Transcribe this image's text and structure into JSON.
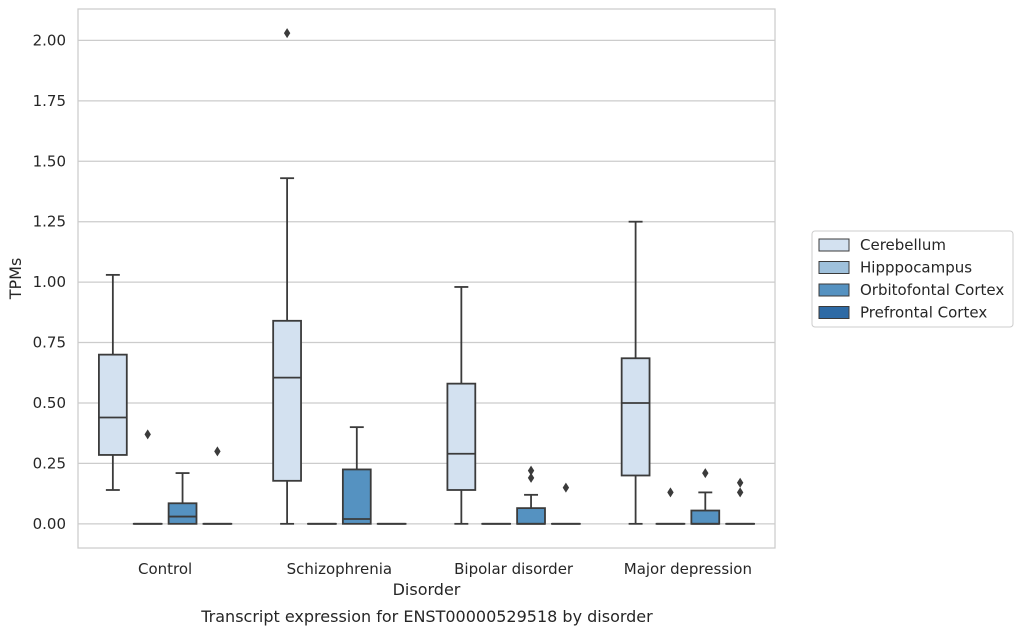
{
  "chart_data": {
    "type": "box",
    "xlabel": "Disorder",
    "ylabel": "TPMs",
    "caption": "Transcript expression for ENST00000529518 by disorder",
    "categories": [
      "Control",
      "Schizophrenia",
      "Bipolar disorder",
      "Major depression"
    ],
    "ylim": [
      -0.1,
      2.13
    ],
    "yticks": [
      "0.00",
      "0.25",
      "0.50",
      "0.75",
      "1.00",
      "1.25",
      "1.50",
      "1.75",
      "2.00"
    ],
    "grid": "horizontal",
    "legend_position": "right",
    "series": [
      {
        "name": "Cerebellum",
        "color": "#d3e1f0",
        "boxes": [
          {
            "q1": 0.285,
            "median": 0.44,
            "q3": 0.7,
            "whisker_low": 0.14,
            "whisker_high": 1.03,
            "outliers": []
          },
          {
            "q1": 0.178,
            "median": 0.605,
            "q3": 0.84,
            "whisker_low": 0.0,
            "whisker_high": 1.43,
            "outliers": [
              2.03
            ]
          },
          {
            "q1": 0.14,
            "median": 0.29,
            "q3": 0.58,
            "whisker_low": 0.0,
            "whisker_high": 0.98,
            "outliers": []
          },
          {
            "q1": 0.2,
            "median": 0.5,
            "q3": 0.685,
            "whisker_low": 0.0,
            "whisker_high": 1.25,
            "outliers": []
          }
        ]
      },
      {
        "name": "Hipppocampus",
        "color": "#9fc1dc",
        "boxes": [
          {
            "q1": 0.0,
            "median": 0.0,
            "q3": 0.0,
            "whisker_low": 0.0,
            "whisker_high": 0.0,
            "outliers": [
              0.37
            ]
          },
          {
            "q1": 0.0,
            "median": 0.0,
            "q3": 0.0,
            "whisker_low": 0.0,
            "whisker_high": 0.0,
            "outliers": []
          },
          {
            "q1": 0.0,
            "median": 0.0,
            "q3": 0.0,
            "whisker_low": 0.0,
            "whisker_high": 0.0,
            "outliers": []
          },
          {
            "q1": 0.0,
            "median": 0.0,
            "q3": 0.0,
            "whisker_low": 0.0,
            "whisker_high": 0.0,
            "outliers": [
              0.13
            ]
          }
        ]
      },
      {
        "name": "Orbitofontal Cortex",
        "color": "#5592c1",
        "boxes": [
          {
            "q1": 0.0,
            "median": 0.03,
            "q3": 0.085,
            "whisker_low": 0.0,
            "whisker_high": 0.21,
            "outliers": []
          },
          {
            "q1": 0.0,
            "median": 0.02,
            "q3": 0.225,
            "whisker_low": 0.0,
            "whisker_high": 0.4,
            "outliers": []
          },
          {
            "q1": 0.0,
            "median": 0.0,
            "q3": 0.065,
            "whisker_low": 0.0,
            "whisker_high": 0.12,
            "outliers": [
              0.19,
              0.22
            ]
          },
          {
            "q1": 0.0,
            "median": 0.0,
            "q3": 0.055,
            "whisker_low": 0.0,
            "whisker_high": 0.13,
            "outliers": [
              0.21
            ]
          }
        ]
      },
      {
        "name": "Prefrontal Cortex",
        "color": "#2d6aa5",
        "boxes": [
          {
            "q1": 0.0,
            "median": 0.0,
            "q3": 0.0,
            "whisker_low": 0.0,
            "whisker_high": 0.0,
            "outliers": [
              0.3
            ]
          },
          {
            "q1": 0.0,
            "median": 0.0,
            "q3": 0.0,
            "whisker_low": 0.0,
            "whisker_high": 0.0,
            "outliers": []
          },
          {
            "q1": 0.0,
            "median": 0.0,
            "q3": 0.0,
            "whisker_low": 0.0,
            "whisker_high": 0.0,
            "outliers": [
              0.15
            ]
          },
          {
            "q1": 0.0,
            "median": 0.0,
            "q3": 0.0,
            "whisker_low": 0.0,
            "whisker_high": 0.0,
            "outliers": [
              0.13,
              0.17
            ]
          }
        ]
      }
    ]
  }
}
